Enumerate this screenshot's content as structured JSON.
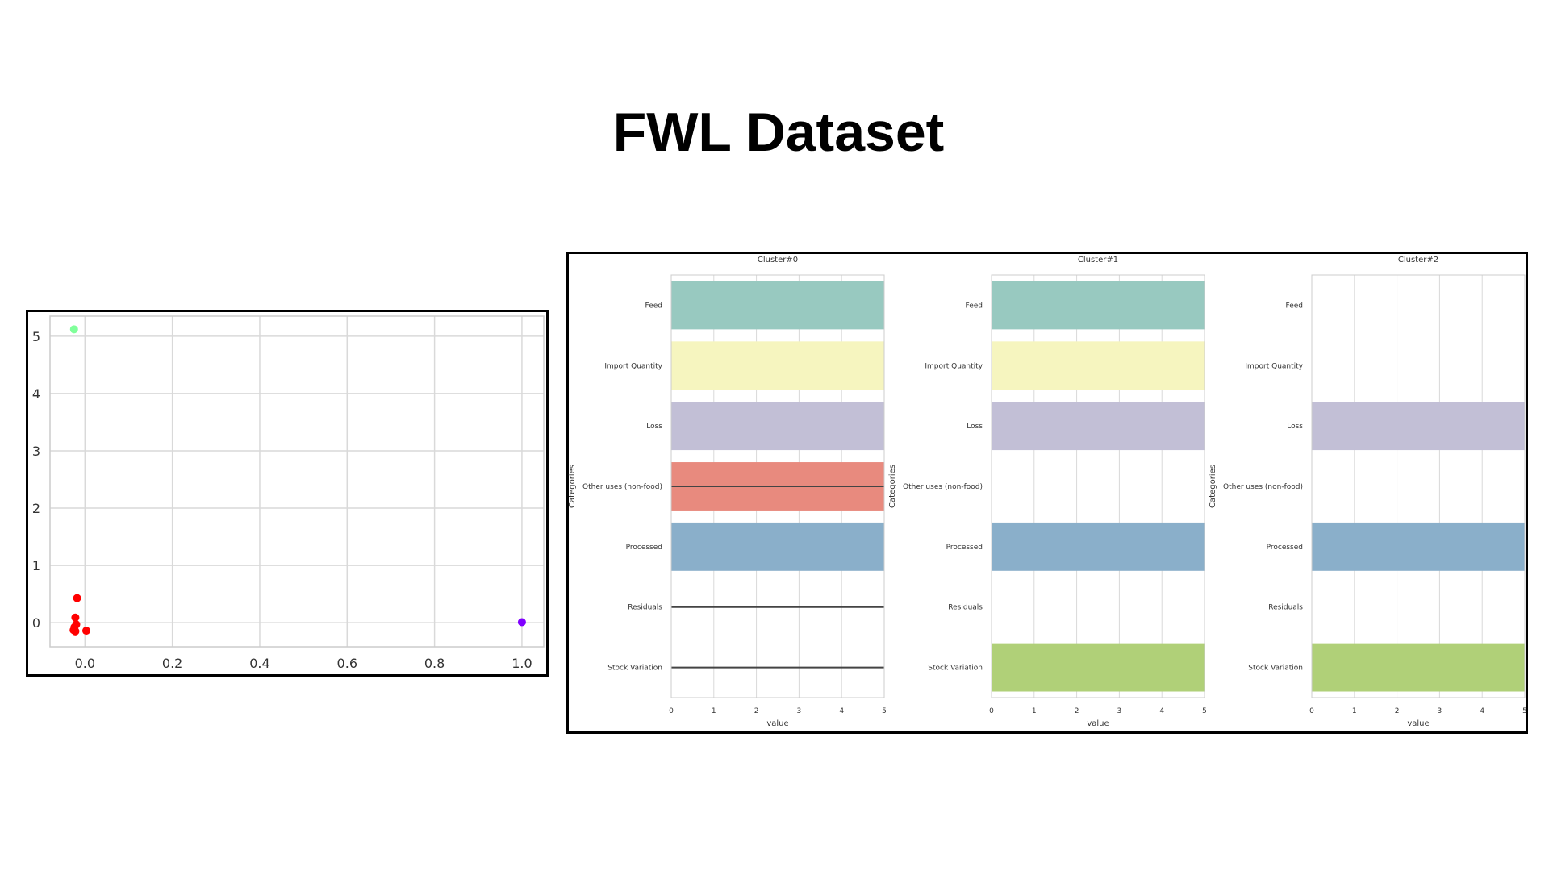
{
  "title": "FWL Dataset",
  "colors": {
    "grid": "#d9d9d9",
    "axis": "#cccccc",
    "frame": "#000000",
    "text": "#333333",
    "red": "#ff0000",
    "green": "#80ff9a",
    "purple": "#8000ff",
    "feed": "#98c9c0",
    "import": "#f6f5bf",
    "loss": "#c2bfd6",
    "other": "#e88a7e",
    "processed": "#8aafca",
    "stock": "#b0d078"
  },
  "chart_data": [
    {
      "type": "scatter",
      "xlim": [
        -0.08,
        1.05
      ],
      "ylim": [
        -0.42,
        5.35
      ],
      "x_ticks": [
        "0.0",
        "0.2",
        "0.4",
        "0.6",
        "0.8",
        "1.0"
      ],
      "y_ticks": [
        "0",
        "1",
        "2",
        "3",
        "4",
        "5"
      ],
      "grid": true,
      "points": [
        {
          "x": -0.025,
          "y": 5.12,
          "color": "green"
        },
        {
          "x": -0.018,
          "y": 0.43,
          "color": "red"
        },
        {
          "x": -0.022,
          "y": 0.09,
          "color": "red"
        },
        {
          "x": -0.02,
          "y": -0.03,
          "color": "red"
        },
        {
          "x": -0.024,
          "y": -0.08,
          "color": "red"
        },
        {
          "x": -0.026,
          "y": -0.13,
          "color": "red"
        },
        {
          "x": -0.022,
          "y": -0.15,
          "color": "red"
        },
        {
          "x": 0.003,
          "y": -0.14,
          "color": "red"
        },
        {
          "x": 1.0,
          "y": 0.01,
          "color": "purple"
        }
      ]
    },
    {
      "type": "bar",
      "orientation": "horizontal",
      "categories": [
        "Feed",
        "Import Quantity",
        "Loss",
        "Other uses (non-food)",
        "Processed",
        "Residuals",
        "Stock Variation"
      ],
      "bar_colors": [
        "feed",
        "import",
        "loss",
        "other",
        "processed",
        "processed",
        "stock"
      ],
      "xlabel": "value",
      "ylabel": "Categories",
      "xlim": [
        0,
        5
      ],
      "x_ticks": [
        "0",
        "1",
        "2",
        "3",
        "4",
        "5"
      ],
      "panels": [
        {
          "title": "Cluster#0",
          "values": [
            5,
            5,
            5,
            5,
            5,
            0,
            0
          ],
          "error_lines": [
            false,
            false,
            false,
            true,
            false,
            true,
            true
          ]
        },
        {
          "title": "Cluster#1",
          "values": [
            5,
            5,
            5,
            0,
            5,
            0,
            5
          ],
          "error_lines": [
            false,
            false,
            false,
            false,
            false,
            false,
            false
          ]
        },
        {
          "title": "Cluster#2",
          "values": [
            0,
            0,
            5,
            0,
            5,
            0,
            5
          ],
          "error_lines": [
            false,
            false,
            false,
            false,
            false,
            false,
            false
          ]
        }
      ]
    }
  ]
}
